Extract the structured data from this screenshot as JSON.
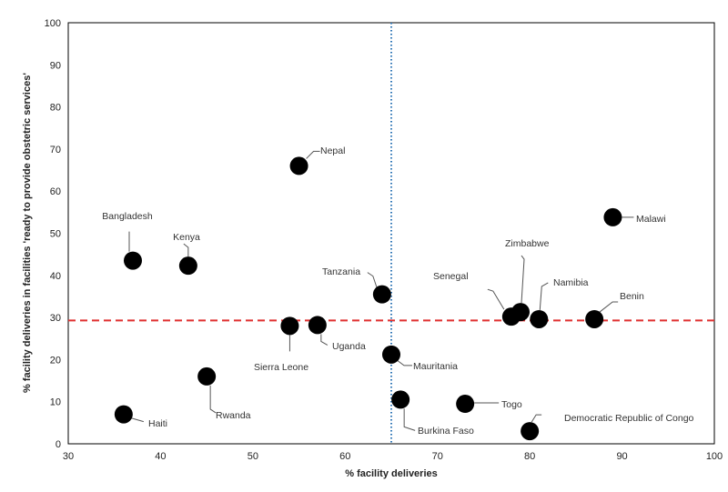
{
  "chart_data": {
    "type": "scatter",
    "xlabel": "% facility deliveries",
    "ylabel": "% facility deliveries in facilities 'ready to provide obstetric services'",
    "xlim": [
      30,
      100
    ],
    "ylim": [
      0,
      100
    ],
    "xticks": [
      "30",
      "40",
      "50",
      "60",
      "70",
      "80",
      "90",
      "100"
    ],
    "yticks": [
      "0",
      "10",
      "20",
      "30",
      "40",
      "50",
      "60",
      "70",
      "80",
      "90",
      "100"
    ],
    "grid": false,
    "vline": {
      "x": 65,
      "color": "#2e75b6",
      "style": "dotted"
    },
    "hline": {
      "y": 29.3,
      "color": "#e03030",
      "style": "dashed"
    },
    "marker_color": "#000000",
    "points": [
      {
        "label": "Haiti",
        "x": 36,
        "y": 7
      },
      {
        "label": "Bangladesh",
        "x": 37,
        "y": 43.5
      },
      {
        "label": "Kenya",
        "x": 43,
        "y": 42.3
      },
      {
        "label": "Rwanda",
        "x": 45,
        "y": 16
      },
      {
        "label": "Nepal",
        "x": 55,
        "y": 66
      },
      {
        "label": "Sierra Leone",
        "x": 54,
        "y": 28
      },
      {
        "label": "Uganda",
        "x": 57,
        "y": 28.2
      },
      {
        "label": "Tanzania",
        "x": 64,
        "y": 35.5
      },
      {
        "label": "Mauritania",
        "x": 65,
        "y": 21.2
      },
      {
        "label": "Burkina Faso",
        "x": 66,
        "y": 10.5
      },
      {
        "label": "Togo",
        "x": 73,
        "y": 9.5
      },
      {
        "label": "Senegal",
        "x": 78,
        "y": 30.2
      },
      {
        "label": "Zimbabwe",
        "x": 79,
        "y": 31.3
      },
      {
        "label": "Namibia",
        "x": 81,
        "y": 29.6
      },
      {
        "label": "Democratic Republic of Congo",
        "x": 80,
        "y": 3
      },
      {
        "label": "Benin",
        "x": 87,
        "y": 29.6
      },
      {
        "label": "Malawi",
        "x": 89,
        "y": 53.8
      }
    ]
  }
}
